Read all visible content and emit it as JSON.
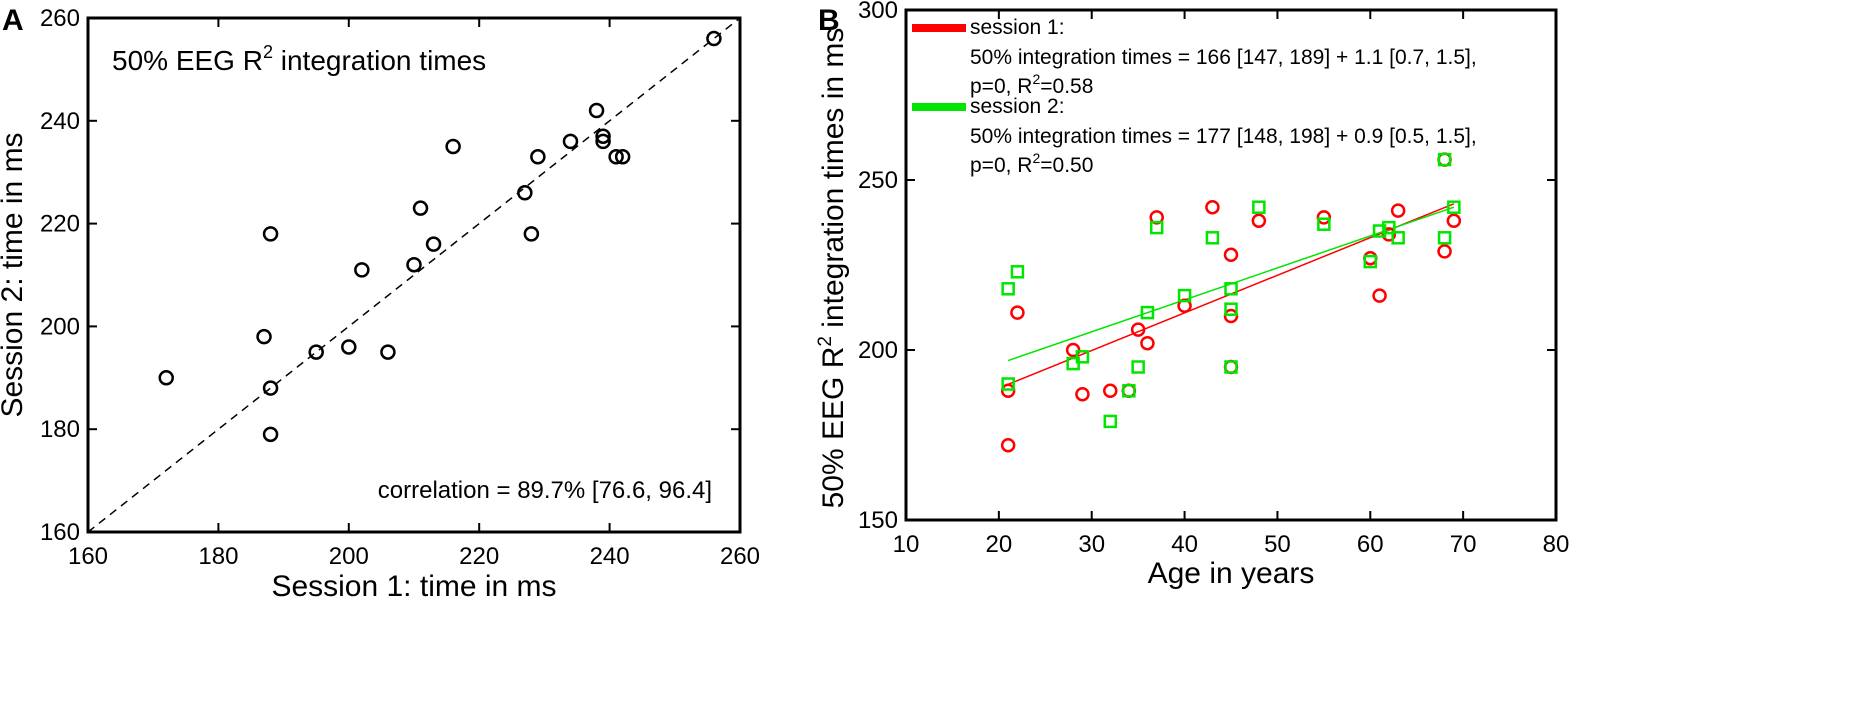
{
  "chart_data": [
    {
      "panel_label": "A",
      "type": "scatter",
      "title": "50% EEG R",
      "title_sup": "2",
      "title_suffix": " integration times",
      "xlabel": "Session 1: time in ms",
      "ylabel": "Session 2: time in ms",
      "xlim": [
        160,
        260
      ],
      "ylim": [
        160,
        260
      ],
      "xticks": [
        160,
        180,
        200,
        220,
        240,
        260
      ],
      "yticks": [
        160,
        180,
        200,
        220,
        240,
        260
      ],
      "annotation": "correlation = 89.7% [76.6, 96.4]",
      "identity_line": true,
      "marker_color": "#000000",
      "points": [
        [
          172,
          190
        ],
        [
          187,
          198
        ],
        [
          188,
          218
        ],
        [
          188,
          188
        ],
        [
          188,
          179
        ],
        [
          195,
          195
        ],
        [
          200,
          196
        ],
        [
          202,
          211
        ],
        [
          206,
          195
        ],
        [
          210,
          212
        ],
        [
          211,
          223
        ],
        [
          213,
          216
        ],
        [
          216,
          235
        ],
        [
          227,
          226
        ],
        [
          228,
          218
        ],
        [
          229,
          233
        ],
        [
          234,
          236
        ],
        [
          238,
          242
        ],
        [
          239,
          237
        ],
        [
          239,
          236
        ],
        [
          241,
          233
        ],
        [
          242,
          233
        ],
        [
          256,
          256
        ]
      ]
    },
    {
      "panel_label": "B",
      "type": "scatter",
      "xlabel": "Age in years",
      "ylabel": "50% EEG R",
      "ylabel_sup": "2",
      "ylabel_suffix": " integration times in ms",
      "xlim": [
        10,
        80
      ],
      "ylim": [
        150,
        300
      ],
      "xticks": [
        10,
        20,
        30,
        40,
        50,
        60,
        70,
        80
      ],
      "yticks": [
        150,
        200,
        250,
        300
      ],
      "legend_position": "top-left",
      "series": [
        {
          "name": "session 1:",
          "color": "#ff0000",
          "marker": "circle",
          "fit_text_1": "50% integration times = 166 [147, 189] + 1.1 [0.7, 1.5],",
          "fit_text_2_prefix": "p=0, R",
          "fit_text_2_sup": "2",
          "fit_text_2_suffix": "=0.58",
          "fit_line": {
            "x": [
              21,
              69
            ],
            "y": [
              189.9,
              243.0
            ]
          },
          "points": [
            [
              21,
              188
            ],
            [
              21,
              172
            ],
            [
              22,
              211
            ],
            [
              28,
              200
            ],
            [
              29,
              187
            ],
            [
              32,
              188
            ],
            [
              34,
              188
            ],
            [
              35,
              206
            ],
            [
              36,
              202
            ],
            [
              37,
              239
            ],
            [
              40,
              213
            ],
            [
              43,
              242
            ],
            [
              45,
              228
            ],
            [
              45,
              210
            ],
            [
              45,
              195
            ],
            [
              48,
              238
            ],
            [
              55,
              239
            ],
            [
              60,
              227
            ],
            [
              61,
              216
            ],
            [
              62,
              234
            ],
            [
              63,
              241
            ],
            [
              68,
              256
            ],
            [
              68,
              229
            ],
            [
              69,
              238
            ]
          ]
        },
        {
          "name": "session 2:",
          "color": "#00e600",
          "marker": "square",
          "fit_text_1": "50% integration times = 177 [148, 198] + 0.9 [0.5, 1.5],",
          "fit_text_2_prefix": "p=0, R",
          "fit_text_2_sup": "2",
          "fit_text_2_suffix": "=0.50",
          "fit_line": {
            "x": [
              21,
              69
            ],
            "y": [
              196.9,
              242.0
            ]
          },
          "points": [
            [
              21,
              218
            ],
            [
              21,
              190
            ],
            [
              22,
              223
            ],
            [
              28,
              196
            ],
            [
              29,
              198
            ],
            [
              32,
              179
            ],
            [
              34,
              188
            ],
            [
              35,
              195
            ],
            [
              36,
              211
            ],
            [
              37,
              236
            ],
            [
              40,
              216
            ],
            [
              43,
              233
            ],
            [
              45,
              218
            ],
            [
              45,
              212
            ],
            [
              45,
              195
            ],
            [
              48,
              242
            ],
            [
              55,
              237
            ],
            [
              60,
              226
            ],
            [
              61,
              235
            ],
            [
              62,
              236
            ],
            [
              63,
              233
            ],
            [
              68,
              256
            ],
            [
              68,
              233
            ],
            [
              69,
              242
            ]
          ]
        }
      ]
    }
  ]
}
